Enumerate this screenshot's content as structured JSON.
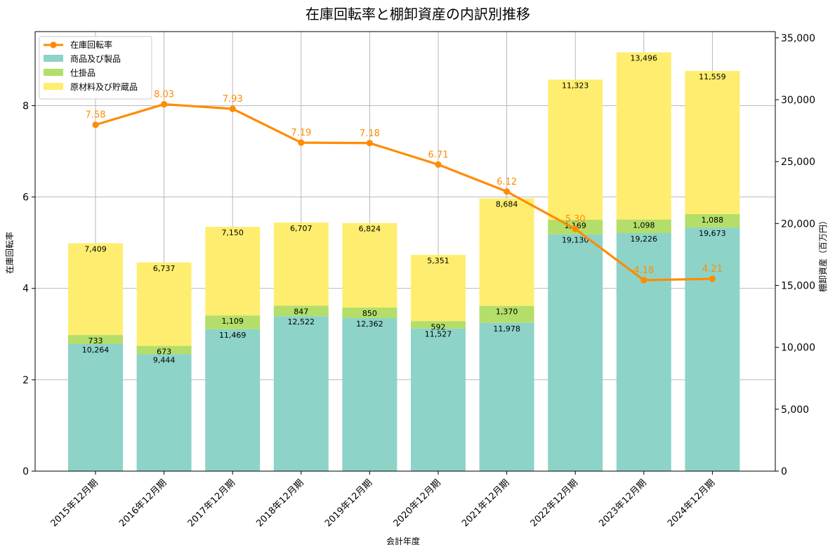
{
  "chart_data": {
    "type": "bar+line",
    "title": "在庫回転率と棚卸資産の内訳別推移",
    "xlabel": "会計年度",
    "ylabel_left": "在庫回転率",
    "ylabel_right": "棚卸資産（百万円）",
    "categories": [
      "2015年12月期",
      "2016年12月期",
      "2017年12月期",
      "2018年12月期",
      "2019年12月期",
      "2020年12月期",
      "2021年12月期",
      "2022年12月期",
      "2023年12月期",
      "2024年12月期"
    ],
    "ylim_left": [
      0,
      9.62
    ],
    "yticks_left": [
      0,
      2,
      4,
      6,
      8
    ],
    "ylim_right": [
      0,
      35500
    ],
    "yticks_right": [
      0,
      5000,
      10000,
      15000,
      20000,
      25000,
      30000,
      35000
    ],
    "ytick_labels_right": [
      "0",
      "5,000",
      "10,000",
      "15,000",
      "20,000",
      "25,000",
      "30,000",
      "35,000"
    ],
    "grid": true,
    "legend_position": "top-left",
    "bar_series": [
      {
        "name": "商品及び製品",
        "color": "#8dd3c7",
        "values": [
          10264,
          9444,
          11469,
          12522,
          12362,
          11527,
          11978,
          19130,
          19226,
          19673
        ],
        "labels": [
          "10,264",
          "9,444",
          "11,469",
          "12,522",
          "12,362",
          "11,527",
          "11,978",
          "19,130",
          "19,226",
          "19,673"
        ]
      },
      {
        "name": "仕掛品",
        "color": "#b3de69",
        "values": [
          733,
          673,
          1109,
          847,
          850,
          592,
          1370,
          1169,
          1098,
          1088
        ],
        "labels": [
          "733",
          "673",
          "1,109",
          "847",
          "850",
          "592",
          "1,370",
          "1,169",
          "1,098",
          "1,088"
        ]
      },
      {
        "name": "原材料及び貯蔵品",
        "color": "#ffed6f",
        "values": [
          7409,
          6737,
          7150,
          6707,
          6824,
          5351,
          8684,
          11323,
          13496,
          11559
        ],
        "labels": [
          "7,409",
          "6,737",
          "7,150",
          "6,707",
          "6,824",
          "5,351",
          "8,684",
          "11,323",
          "13,496",
          "11,559"
        ]
      }
    ],
    "line_series": {
      "name": "在庫回転率",
      "color": "#ff8c00",
      "values": [
        7.58,
        8.03,
        7.93,
        7.19,
        7.18,
        6.71,
        6.12,
        5.3,
        4.18,
        4.21
      ],
      "labels": [
        "7.58",
        "8.03",
        "7.93",
        "7.19",
        "7.18",
        "6.71",
        "6.12",
        "5.30",
        "4.18",
        "4.21"
      ]
    }
  }
}
